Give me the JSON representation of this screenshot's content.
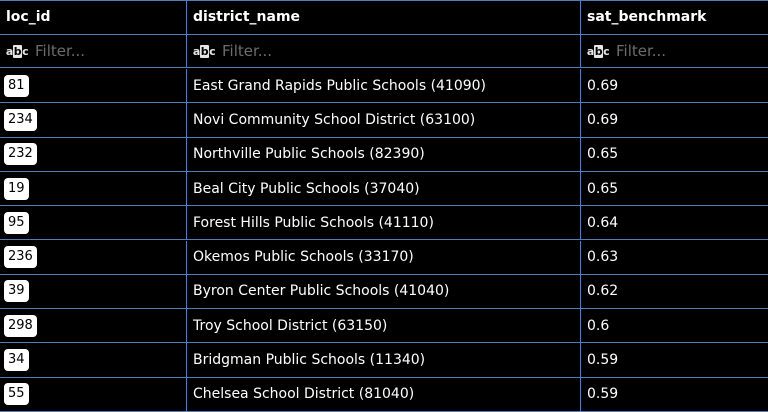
{
  "columns": [
    "loc_id",
    "district_name",
    "sat_benchmark"
  ],
  "filter_placeholder": "Filter...",
  "rows": [
    {
      "loc_id": "81",
      "district_name": "East Grand Rapids Public Schools (41090)",
      "sat_benchmark": "0.69"
    },
    {
      "loc_id": "234",
      "district_name": "Novi Community School District (63100)",
      "sat_benchmark": "0.69"
    },
    {
      "loc_id": "232",
      "district_name": "Northville Public Schools (82390)",
      "sat_benchmark": "0.65"
    },
    {
      "loc_id": "19",
      "district_name": "Beal City Public Schools (37040)",
      "sat_benchmark": "0.65"
    },
    {
      "loc_id": "95",
      "district_name": "Forest Hills Public Schools (41110)",
      "sat_benchmark": "0.64"
    },
    {
      "loc_id": "236",
      "district_name": "Okemos Public Schools (33170)",
      "sat_benchmark": "0.63"
    },
    {
      "loc_id": "39",
      "district_name": "Byron Center Public Schools (41040)",
      "sat_benchmark": "0.62"
    },
    {
      "loc_id": "298",
      "district_name": "Troy School District (63150)",
      "sat_benchmark": "0.6"
    },
    {
      "loc_id": "34",
      "district_name": "Bridgman Public Schools (11340)",
      "sat_benchmark": "0.59"
    },
    {
      "loc_id": "55",
      "district_name": "Chelsea School District (81040)",
      "sat_benchmark": "0.59"
    }
  ]
}
